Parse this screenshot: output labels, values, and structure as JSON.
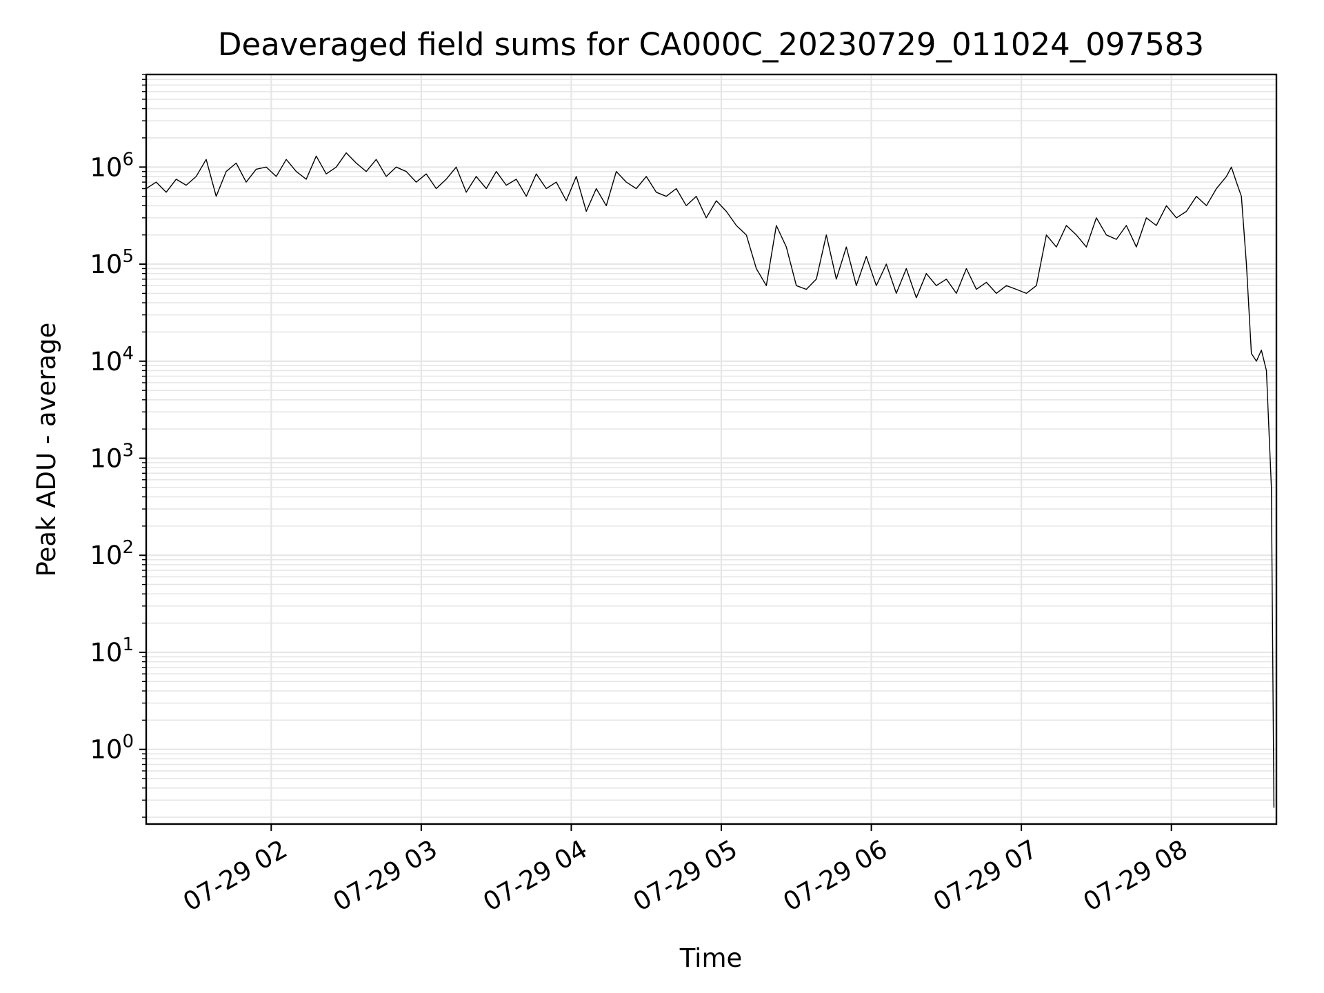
{
  "chart_data": {
    "type": "line",
    "title": "Deaveraged field sums for CA000C_20230729_011024_097583",
    "xlabel": "Time",
    "ylabel": "Peak ADU - average",
    "x_range": [
      "07-29 01:10",
      "07-29 08:42"
    ],
    "ylim": [
      0.17,
      9000000
    ],
    "yscale": "log",
    "grid": true,
    "line_color": "#000000",
    "x_ticks": [
      "07-29 02",
      "07-29 03",
      "07-29 04",
      "07-29 05",
      "07-29 06",
      "07-29 07",
      "07-29 08"
    ],
    "y_ticks": [
      {
        "base": "10",
        "exp": "0"
      },
      {
        "base": "10",
        "exp": "1"
      },
      {
        "base": "10",
        "exp": "2"
      },
      {
        "base": "10",
        "exp": "3"
      },
      {
        "base": "10",
        "exp": "4"
      },
      {
        "base": "10",
        "exp": "5"
      },
      {
        "base": "10",
        "exp": "6"
      }
    ],
    "series": [
      {
        "x": [
          "07-29 01:10",
          "07-29 01:14",
          "07-29 01:18",
          "07-29 01:22",
          "07-29 01:26",
          "07-29 01:30",
          "07-29 01:34",
          "07-29 01:38",
          "07-29 01:42",
          "07-29 01:46",
          "07-29 01:50",
          "07-29 01:54",
          "07-29 01:58",
          "07-29 02:02",
          "07-29 02:06",
          "07-29 02:10",
          "07-29 02:14",
          "07-29 02:18",
          "07-29 02:22",
          "07-29 02:26",
          "07-29 02:30",
          "07-29 02:34",
          "07-29 02:38",
          "07-29 02:42",
          "07-29 02:46",
          "07-29 02:50",
          "07-29 02:54",
          "07-29 02:58",
          "07-29 03:02",
          "07-29 03:06",
          "07-29 03:10",
          "07-29 03:14",
          "07-29 03:18",
          "07-29 03:22",
          "07-29 03:26",
          "07-29 03:30",
          "07-29 03:34",
          "07-29 03:38",
          "07-29 03:42",
          "07-29 03:46",
          "07-29 03:50",
          "07-29 03:54",
          "07-29 03:58",
          "07-29 04:02",
          "07-29 04:06",
          "07-29 04:10",
          "07-29 04:14",
          "07-29 04:18",
          "07-29 04:22",
          "07-29 04:26",
          "07-29 04:30",
          "07-29 04:34",
          "07-29 04:38",
          "07-29 04:42",
          "07-29 04:46",
          "07-29 04:50",
          "07-29 04:54",
          "07-29 04:58",
          "07-29 05:02",
          "07-29 05:06",
          "07-29 05:10",
          "07-29 05:14",
          "07-29 05:18",
          "07-29 05:22",
          "07-29 05:26",
          "07-29 05:30",
          "07-29 05:34",
          "07-29 05:38",
          "07-29 05:42",
          "07-29 05:46",
          "07-29 05:50",
          "07-29 05:54",
          "07-29 05:58",
          "07-29 06:02",
          "07-29 06:06",
          "07-29 06:10",
          "07-29 06:14",
          "07-29 06:18",
          "07-29 06:22",
          "07-29 06:26",
          "07-29 06:30",
          "07-29 06:34",
          "07-29 06:38",
          "07-29 06:42",
          "07-29 06:46",
          "07-29 06:50",
          "07-29 06:54",
          "07-29 06:58",
          "07-29 07:02",
          "07-29 07:06",
          "07-29 07:10",
          "07-29 07:14",
          "07-29 07:18",
          "07-29 07:22",
          "07-29 07:26",
          "07-29 07:30",
          "07-29 07:34",
          "07-29 07:38",
          "07-29 07:42",
          "07-29 07:46",
          "07-29 07:50",
          "07-29 07:54",
          "07-29 07:58",
          "07-29 08:02",
          "07-29 08:06",
          "07-29 08:10",
          "07-29 08:14",
          "07-29 08:18",
          "07-29 08:22",
          "07-29 08:24",
          "07-29 08:26",
          "07-29 08:28",
          "07-29 08:30",
          "07-29 08:32",
          "07-29 08:34",
          "07-29 08:36",
          "07-29 08:38",
          "07-29 08:40",
          "07-29 08:41"
        ],
        "y": [
          600000,
          700000,
          550000,
          750000,
          650000,
          800000,
          1200000,
          500000,
          900000,
          1100000,
          700000,
          950000,
          1000000,
          800000,
          1200000,
          900000,
          750000,
          1300000,
          850000,
          1000000,
          1400000,
          1100000,
          900000,
          1200000,
          800000,
          1000000,
          900000,
          700000,
          850000,
          600000,
          750000,
          1000000,
          550000,
          800000,
          600000,
          900000,
          650000,
          750000,
          500000,
          850000,
          600000,
          700000,
          450000,
          800000,
          350000,
          600000,
          400000,
          900000,
          700000,
          600000,
          800000,
          550000,
          500000,
          600000,
          400000,
          500000,
          300000,
          450000,
          350000,
          250000,
          200000,
          90000,
          60000,
          250000,
          150000,
          60000,
          55000,
          70000,
          200000,
          70000,
          150000,
          60000,
          120000,
          60000,
          100000,
          50000,
          90000,
          45000,
          80000,
          60000,
          70000,
          50000,
          90000,
          55000,
          65000,
          50000,
          60000,
          55000,
          50000,
          60000,
          200000,
          150000,
          250000,
          200000,
          150000,
          300000,
          200000,
          180000,
          250000,
          150000,
          300000,
          250000,
          400000,
          300000,
          350000,
          500000,
          400000,
          600000,
          800000,
          1000000,
          700000,
          500000,
          100000,
          12000,
          10000,
          13000,
          8000,
          500,
          0.25
        ]
      }
    ]
  }
}
